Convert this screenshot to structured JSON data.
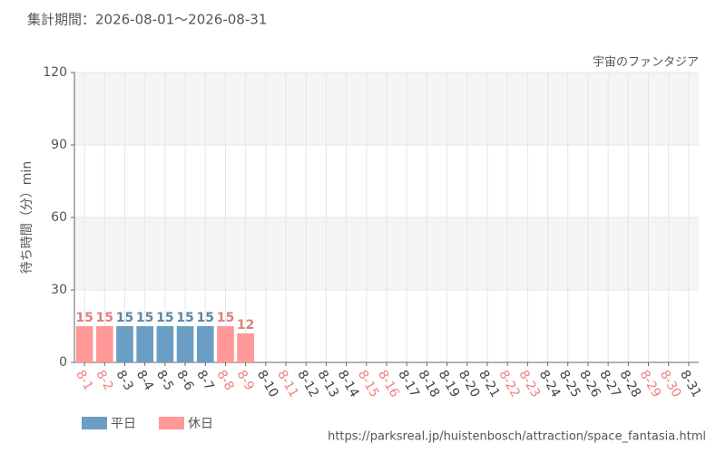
{
  "chart_data": {
    "type": "bar",
    "title": "集計期間：2026-08-01～2026-08-31",
    "subtitle": "宇宙のファンタジア",
    "y_label": "待ち時間（分）min",
    "source": "https://parksreal.jp/huistenbosch/attraction/space_fantasia.html",
    "categories": [
      "8-1",
      "8-2",
      "8-3",
      "8-4",
      "8-5",
      "8-6",
      "8-7",
      "8-8",
      "8-9",
      "8-10",
      "8-11",
      "8-12",
      "8-13",
      "8-14",
      "8-15",
      "8-16",
      "8-17",
      "8-18",
      "8-19",
      "8-20",
      "8-21",
      "8-22",
      "8-23",
      "8-24",
      "8-25",
      "8-26",
      "8-27",
      "8-28",
      "8-29",
      "8-30",
      "8-31"
    ],
    "category_colors": [
      "#f08080",
      "#f08080",
      "#444444",
      "#444444",
      "#444444",
      "#444444",
      "#444444",
      "#f08080",
      "#f08080",
      "#444444",
      "#f08080",
      "#444444",
      "#444444",
      "#444444",
      "#f08080",
      "#f08080",
      "#444444",
      "#444444",
      "#444444",
      "#444444",
      "#444444",
      "#f08080",
      "#f08080",
      "#444444",
      "#444444",
      "#444444",
      "#444444",
      "#444444",
      "#f08080",
      "#f08080",
      "#444444"
    ],
    "series": [
      {
        "name": "平日",
        "color": "#6a9ec5",
        "values": [
          null,
          null,
          15,
          15,
          15,
          15,
          15,
          null,
          null,
          null,
          null,
          null,
          null,
          null,
          null,
          null,
          null,
          null,
          null,
          null,
          null,
          null,
          null,
          null,
          null,
          null,
          null,
          null,
          null,
          null,
          null
        ]
      },
      {
        "name": "休日",
        "color": "#ff9896",
        "values": [
          15,
          15,
          null,
          null,
          null,
          null,
          null,
          15,
          12,
          null,
          null,
          null,
          null,
          null,
          null,
          null,
          null,
          null,
          null,
          null,
          null,
          null,
          null,
          null,
          null,
          null,
          null,
          null,
          null,
          null,
          null
        ]
      }
    ],
    "ylim": [
      0,
      120
    ],
    "yticks": [
      0,
      30,
      60,
      90,
      120
    ],
    "grid": true
  }
}
